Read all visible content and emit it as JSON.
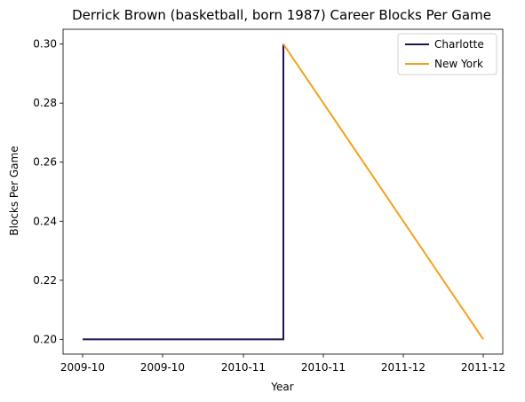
{
  "chart_data": {
    "type": "line",
    "title": "Derrick Brown (basketball, born 1987) Career Blocks Per Game",
    "xlabel": "Year",
    "ylabel": "Blocks Per Game",
    "x_ticks": [
      "2009-10",
      "2009-10",
      "2010-11",
      "2010-11",
      "2011-12",
      "2011-12"
    ],
    "y_ticks": [
      "0.20",
      "0.22",
      "0.24",
      "0.26",
      "0.28",
      "0.30"
    ],
    "ylim": [
      0.195,
      0.305
    ],
    "grid": false,
    "legend_position": "top-right",
    "series": [
      {
        "name": "Charlotte",
        "color": "#1b1352",
        "points": [
          {
            "x": "2009-10",
            "y": 0.2
          },
          {
            "x": "2010-11",
            "y": 0.2
          },
          {
            "x": "2010-11",
            "y": 0.3
          }
        ]
      },
      {
        "name": "New York",
        "color": "#f5a11b",
        "points": [
          {
            "x": "2010-11",
            "y": 0.3
          },
          {
            "x": "2011-12",
            "y": 0.2
          }
        ]
      }
    ]
  }
}
